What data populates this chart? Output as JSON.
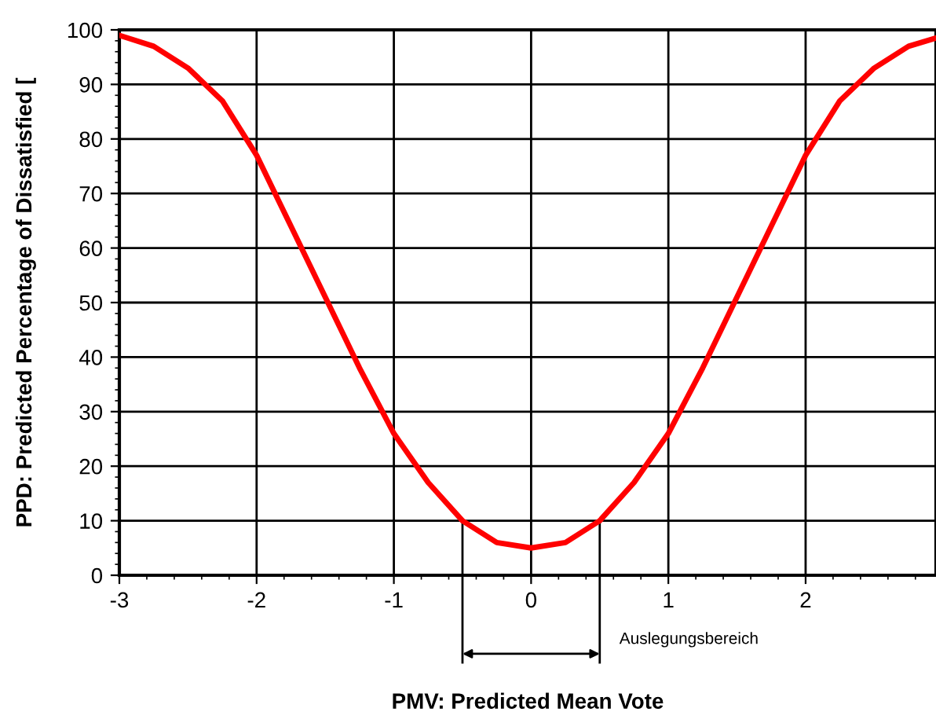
{
  "chart_data": {
    "type": "line",
    "xlabel": "PMV: Predicted Mean Vote",
    "ylabel": "PPD: Predicted Percentage of Dissatisfied [",
    "x": [
      -3,
      -2.75,
      -2.5,
      -2.25,
      -2,
      -1.75,
      -1.5,
      -1.25,
      -1,
      -0.75,
      -0.5,
      -0.25,
      0,
      0.25,
      0.5,
      0.75,
      1,
      1.25,
      1.5,
      1.75,
      2,
      2.25,
      2.5,
      2.75,
      2.95
    ],
    "series": [
      {
        "color": "#ff0000",
        "values": [
          99,
          97,
          93,
          87,
          77,
          64,
          51,
          38,
          26,
          17,
          10,
          6,
          5,
          6,
          10,
          17,
          26,
          38,
          51,
          64,
          77,
          87,
          93,
          97,
          98.5
        ]
      }
    ],
    "xlim": [
      -3,
      2.95
    ],
    "ylim": [
      0,
      100
    ],
    "xticks": [
      -3,
      -2,
      -1,
      0,
      1,
      2
    ],
    "yticks": [
      0,
      10,
      20,
      30,
      40,
      50,
      60,
      70,
      80,
      90,
      100
    ],
    "grid": true,
    "marker": "none",
    "line_style": "solid",
    "ref_lines": [
      {
        "axis": "x",
        "value": -0.5,
        "color": "#000000"
      },
      {
        "axis": "x",
        "value": 0.5,
        "color": "#000000"
      }
    ],
    "annotations": [
      "Auslegungsbereich"
    ]
  }
}
